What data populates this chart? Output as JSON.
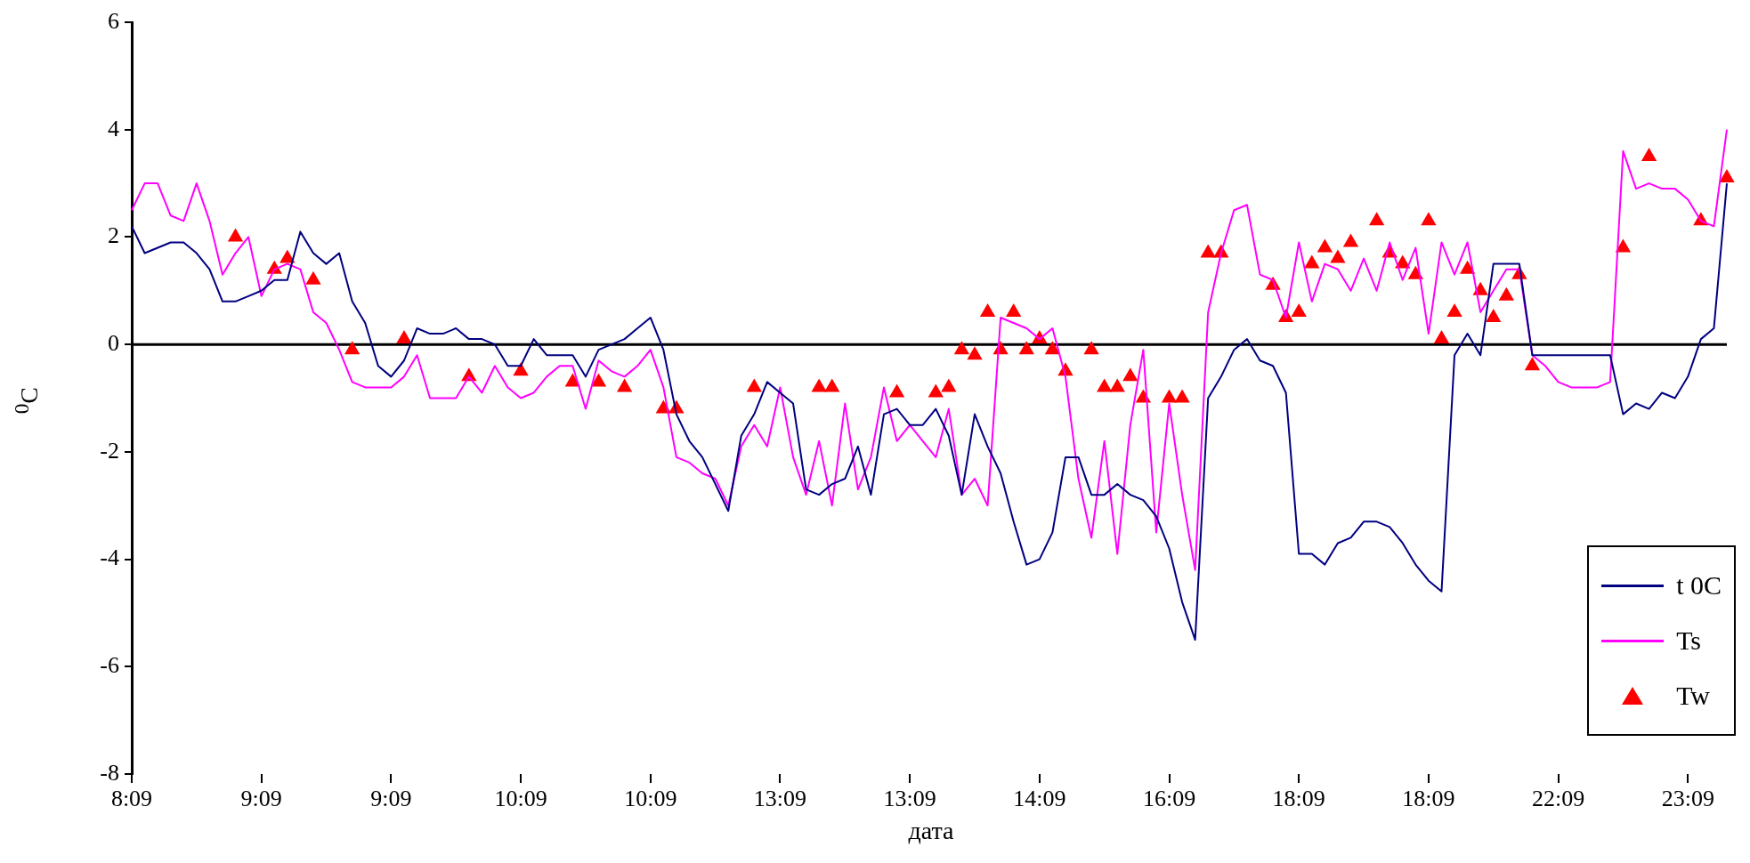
{
  "chart_data": {
    "type": "line",
    "xlabel": "дата",
    "ylabel": "$^{0}$C",
    "categories": [
      "8:09",
      null,
      null,
      null,
      null,
      null,
      null,
      null,
      null,
      null,
      "9:09",
      null,
      null,
      null,
      null,
      null,
      null,
      null,
      null,
      null,
      "9:09",
      null,
      null,
      null,
      null,
      null,
      null,
      null,
      null,
      null,
      "10:09",
      null,
      null,
      null,
      null,
      null,
      null,
      null,
      null,
      null,
      "10:09",
      null,
      null,
      null,
      null,
      null,
      null,
      null,
      null,
      null,
      "13:09",
      null,
      null,
      null,
      null,
      null,
      null,
      null,
      null,
      null,
      "13:09",
      null,
      null,
      null,
      null,
      null,
      null,
      null,
      null,
      null,
      "14:09",
      null,
      null,
      null,
      null,
      null,
      null,
      null,
      null,
      null,
      "16:09",
      null,
      null,
      null,
      null,
      null,
      null,
      null,
      null,
      null,
      "18:09",
      null,
      null,
      null,
      null,
      null,
      null,
      null,
      null,
      null,
      "18:09",
      null,
      null,
      null,
      null,
      null,
      null,
      null,
      null,
      null,
      "22:09",
      null,
      null,
      null,
      null,
      null,
      null,
      null,
      null,
      null,
      "23:09",
      null,
      null,
      null
    ],
    "ylim": [
      -8,
      6
    ],
    "yticks": [
      -8,
      -6,
      -4,
      -2,
      0,
      2,
      4,
      6
    ],
    "grid": false,
    "legend": "bottom right",
    "ref_lines": [
      {
        "axis": "y",
        "value": 0,
        "color": "#000000"
      }
    ],
    "series": [
      {
        "name": "t 0C",
        "color": "#000080",
        "marker": "none",
        "values": [
          2.2,
          1.7,
          1.8,
          1.9,
          1.9,
          1.7,
          1.4,
          0.8,
          0.8,
          0.9,
          1.0,
          1.2,
          1.2,
          2.1,
          1.7,
          1.5,
          1.7,
          0.8,
          0.4,
          -0.4,
          -0.6,
          -0.3,
          0.3,
          0.2,
          0.2,
          0.3,
          0.1,
          0.1,
          0,
          -0.4,
          -0.4,
          0.1,
          -0.2,
          -0.2,
          -0.2,
          -0.6,
          -0.1,
          0,
          0.1,
          0.3,
          0.5,
          -0.1,
          -1.3,
          -1.8,
          -2.1,
          -2.6,
          -3.1,
          -1.7,
          -1.3,
          -0.7,
          -0.9,
          -1.1,
          -2.7,
          -2.8,
          -2.6,
          -2.5,
          -1.9,
          -2.8,
          -1.3,
          -1.2,
          -1.5,
          -1.5,
          -1.2,
          -1.7,
          -2.8,
          -1.3,
          -1.9,
          -2.4,
          -3.3,
          -4.1,
          -4.0,
          -3.5,
          -2.1,
          -2.1,
          -2.8,
          -2.8,
          -2.6,
          -2.8,
          -2.9,
          -3.2,
          -3.8,
          -4.8,
          -5.5,
          -1.0,
          -0.6,
          -0.1,
          0.1,
          -0.3,
          -0.4,
          -0.9,
          -3.9,
          -3.9,
          -4.1,
          -3.7,
          -3.6,
          -3.3,
          -3.3,
          -3.4,
          -3.7,
          -4.1,
          -4.4,
          -4.6,
          -0.2,
          0.2,
          -0.2,
          1.5,
          1.5,
          1.5,
          -0.2,
          -0.2,
          -0.2,
          -0.2,
          -0.2,
          -0.2,
          -0.2,
          -1.3,
          -1.1,
          -1.2,
          -0.9,
          -1.0,
          -0.6,
          0.1,
          0.3,
          3.0
        ]
      },
      {
        "name": "Ts",
        "color": "#ff00ff",
        "marker": "none",
        "values": [
          2.5,
          3.0,
          3.0,
          2.4,
          2.3,
          3.0,
          2.3,
          1.3,
          1.7,
          2.0,
          0.9,
          1.4,
          1.5,
          1.4,
          0.6,
          0.4,
          -0.1,
          -0.7,
          -0.8,
          -0.8,
          -0.8,
          -0.6,
          -0.2,
          -1.0,
          -1.0,
          -1.0,
          -0.6,
          -0.9,
          -0.4,
          -0.8,
          -1.0,
          -0.9,
          -0.6,
          -0.4,
          -0.4,
          -1.2,
          -0.3,
          -0.5,
          -0.6,
          -0.4,
          -0.1,
          -0.8,
          -2.1,
          -2.2,
          -2.4,
          -2.5,
          -3.0,
          -1.9,
          -1.5,
          -1.9,
          -0.8,
          -2.1,
          -2.8,
          -1.8,
          -3.0,
          -1.1,
          -2.7,
          -2.1,
          -0.8,
          -1.8,
          -1.5,
          -1.8,
          -2.1,
          -1.2,
          -2.8,
          -2.5,
          -3.0,
          0.5,
          0.4,
          0.3,
          0.1,
          0.3,
          -0.6,
          -2.5,
          -3.6,
          -1.8,
          -3.9,
          -1.5,
          -0.1,
          -3.5,
          -1.1,
          -2.8,
          -4.2,
          0.6,
          1.7,
          2.5,
          2.6,
          1.3,
          1.2,
          0.5,
          1.9,
          0.8,
          1.5,
          1.4,
          1.0,
          1.6,
          1.0,
          1.9,
          1.2,
          1.8,
          0.2,
          1.9,
          1.3,
          1.9,
          0.6,
          1.0,
          1.4,
          1.4,
          -0.2,
          -0.4,
          -0.7,
          -0.8,
          -0.8,
          -0.8,
          -0.7,
          3.6,
          2.9,
          3.0,
          2.9,
          2.9,
          2.7,
          2.3,
          2.2,
          4.0
        ]
      },
      {
        "name": "Tw",
        "type": "scatter",
        "color": "#ff0000",
        "marker": "triangle",
        "values": [
          null,
          null,
          null,
          null,
          null,
          null,
          null,
          null,
          2.0,
          null,
          null,
          1.4,
          1.6,
          null,
          1.2,
          null,
          null,
          -0.1,
          null,
          null,
          null,
          0.1,
          null,
          null,
          null,
          null,
          -0.6,
          null,
          null,
          null,
          -0.5,
          null,
          null,
          null,
          -0.7,
          null,
          -0.7,
          null,
          -0.8,
          null,
          null,
          -1.2,
          -1.2,
          null,
          null,
          null,
          null,
          null,
          -0.8,
          null,
          null,
          null,
          null,
          -0.8,
          -0.8,
          null,
          null,
          null,
          null,
          -0.9,
          null,
          null,
          -0.9,
          -0.8,
          -0.1,
          -0.2,
          0.6,
          -0.1,
          0.6,
          -0.1,
          0.1,
          -0.1,
          -0.5,
          null,
          -0.1,
          -0.8,
          -0.8,
          -0.6,
          -1.0,
          null,
          -1.0,
          -1.0,
          null,
          1.7,
          1.7,
          null,
          null,
          null,
          1.1,
          0.5,
          0.6,
          1.5,
          1.8,
          1.6,
          1.9,
          null,
          2.3,
          1.7,
          1.5,
          1.3,
          2.3,
          0.1,
          0.6,
          1.4,
          1.0,
          0.5,
          0.9,
          1.3,
          -0.4,
          null,
          null,
          null,
          null,
          null,
          null,
          1.8,
          null,
          3.5,
          null,
          null,
          null,
          2.3,
          null,
          3.1
        ]
      }
    ]
  }
}
